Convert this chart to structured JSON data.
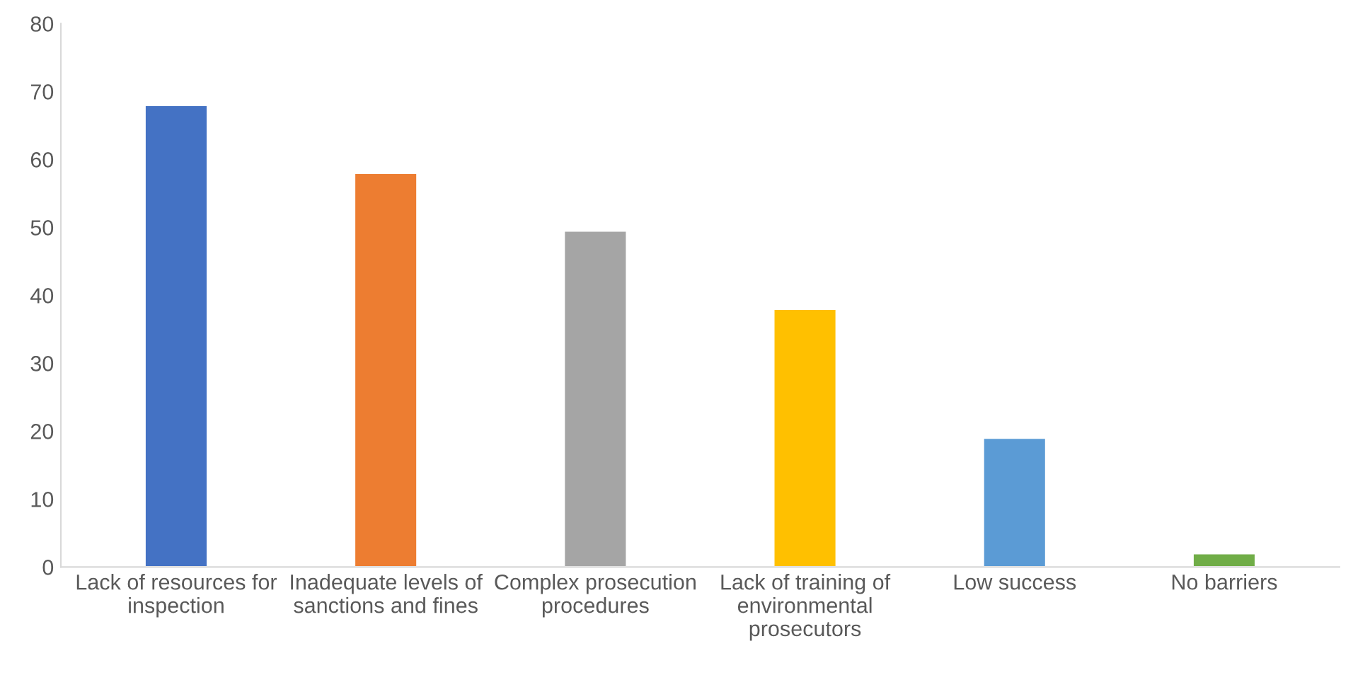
{
  "chart_data": {
    "type": "bar",
    "categories": [
      "Lack of resources for inspection",
      "Inadequate levels of sanctions and fines",
      "Complex prosecution procedures",
      "Lack of training of environmental prosecutors",
      "Low success",
      "No barriers"
    ],
    "values": [
      68,
      58,
      49.5,
      38,
      19,
      2
    ],
    "colors": [
      "#4472c4",
      "#ed7d31",
      "#a5a5a5",
      "#ffc000",
      "#5b9bd5",
      "#70ad47"
    ],
    "ylim": [
      0,
      80
    ],
    "yticks": [
      0,
      10,
      20,
      30,
      40,
      50,
      60,
      70,
      80
    ],
    "grid": false,
    "legend": false
  }
}
